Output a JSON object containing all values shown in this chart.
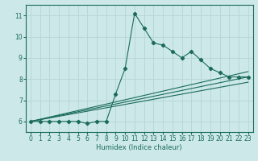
{
  "title": "",
  "xlabel": "Humidex (Indice chaleur)",
  "bg_color": "#cce8e8",
  "line_color": "#1a6b5a",
  "grid_color": "#b8d8d8",
  "xlim": [
    -0.5,
    23.5
  ],
  "ylim": [
    5.5,
    11.5
  ],
  "xticks": [
    0,
    1,
    2,
    3,
    4,
    5,
    6,
    7,
    8,
    9,
    10,
    11,
    12,
    13,
    14,
    15,
    16,
    17,
    18,
    19,
    20,
    21,
    22,
    23
  ],
  "yticks": [
    6,
    7,
    8,
    9,
    10,
    11
  ],
  "main_x": [
    0,
    1,
    2,
    3,
    4,
    5,
    6,
    7,
    8,
    9,
    10,
    11,
    12,
    13,
    14,
    15,
    16,
    17,
    18,
    19,
    20,
    21,
    22,
    23
  ],
  "main_y": [
    6.0,
    6.0,
    6.0,
    6.0,
    6.0,
    6.0,
    5.9,
    6.0,
    6.0,
    7.3,
    8.5,
    11.1,
    10.4,
    9.7,
    9.6,
    9.3,
    9.0,
    9.3,
    8.9,
    8.5,
    8.3,
    8.1,
    8.1,
    8.1
  ],
  "line1_x": [
    0,
    23
  ],
  "line1_y": [
    6.0,
    8.35
  ],
  "line2_x": [
    0,
    23
  ],
  "line2_y": [
    6.0,
    7.85
  ],
  "line3_x": [
    0,
    23
  ],
  "line3_y": [
    6.0,
    8.1
  ]
}
